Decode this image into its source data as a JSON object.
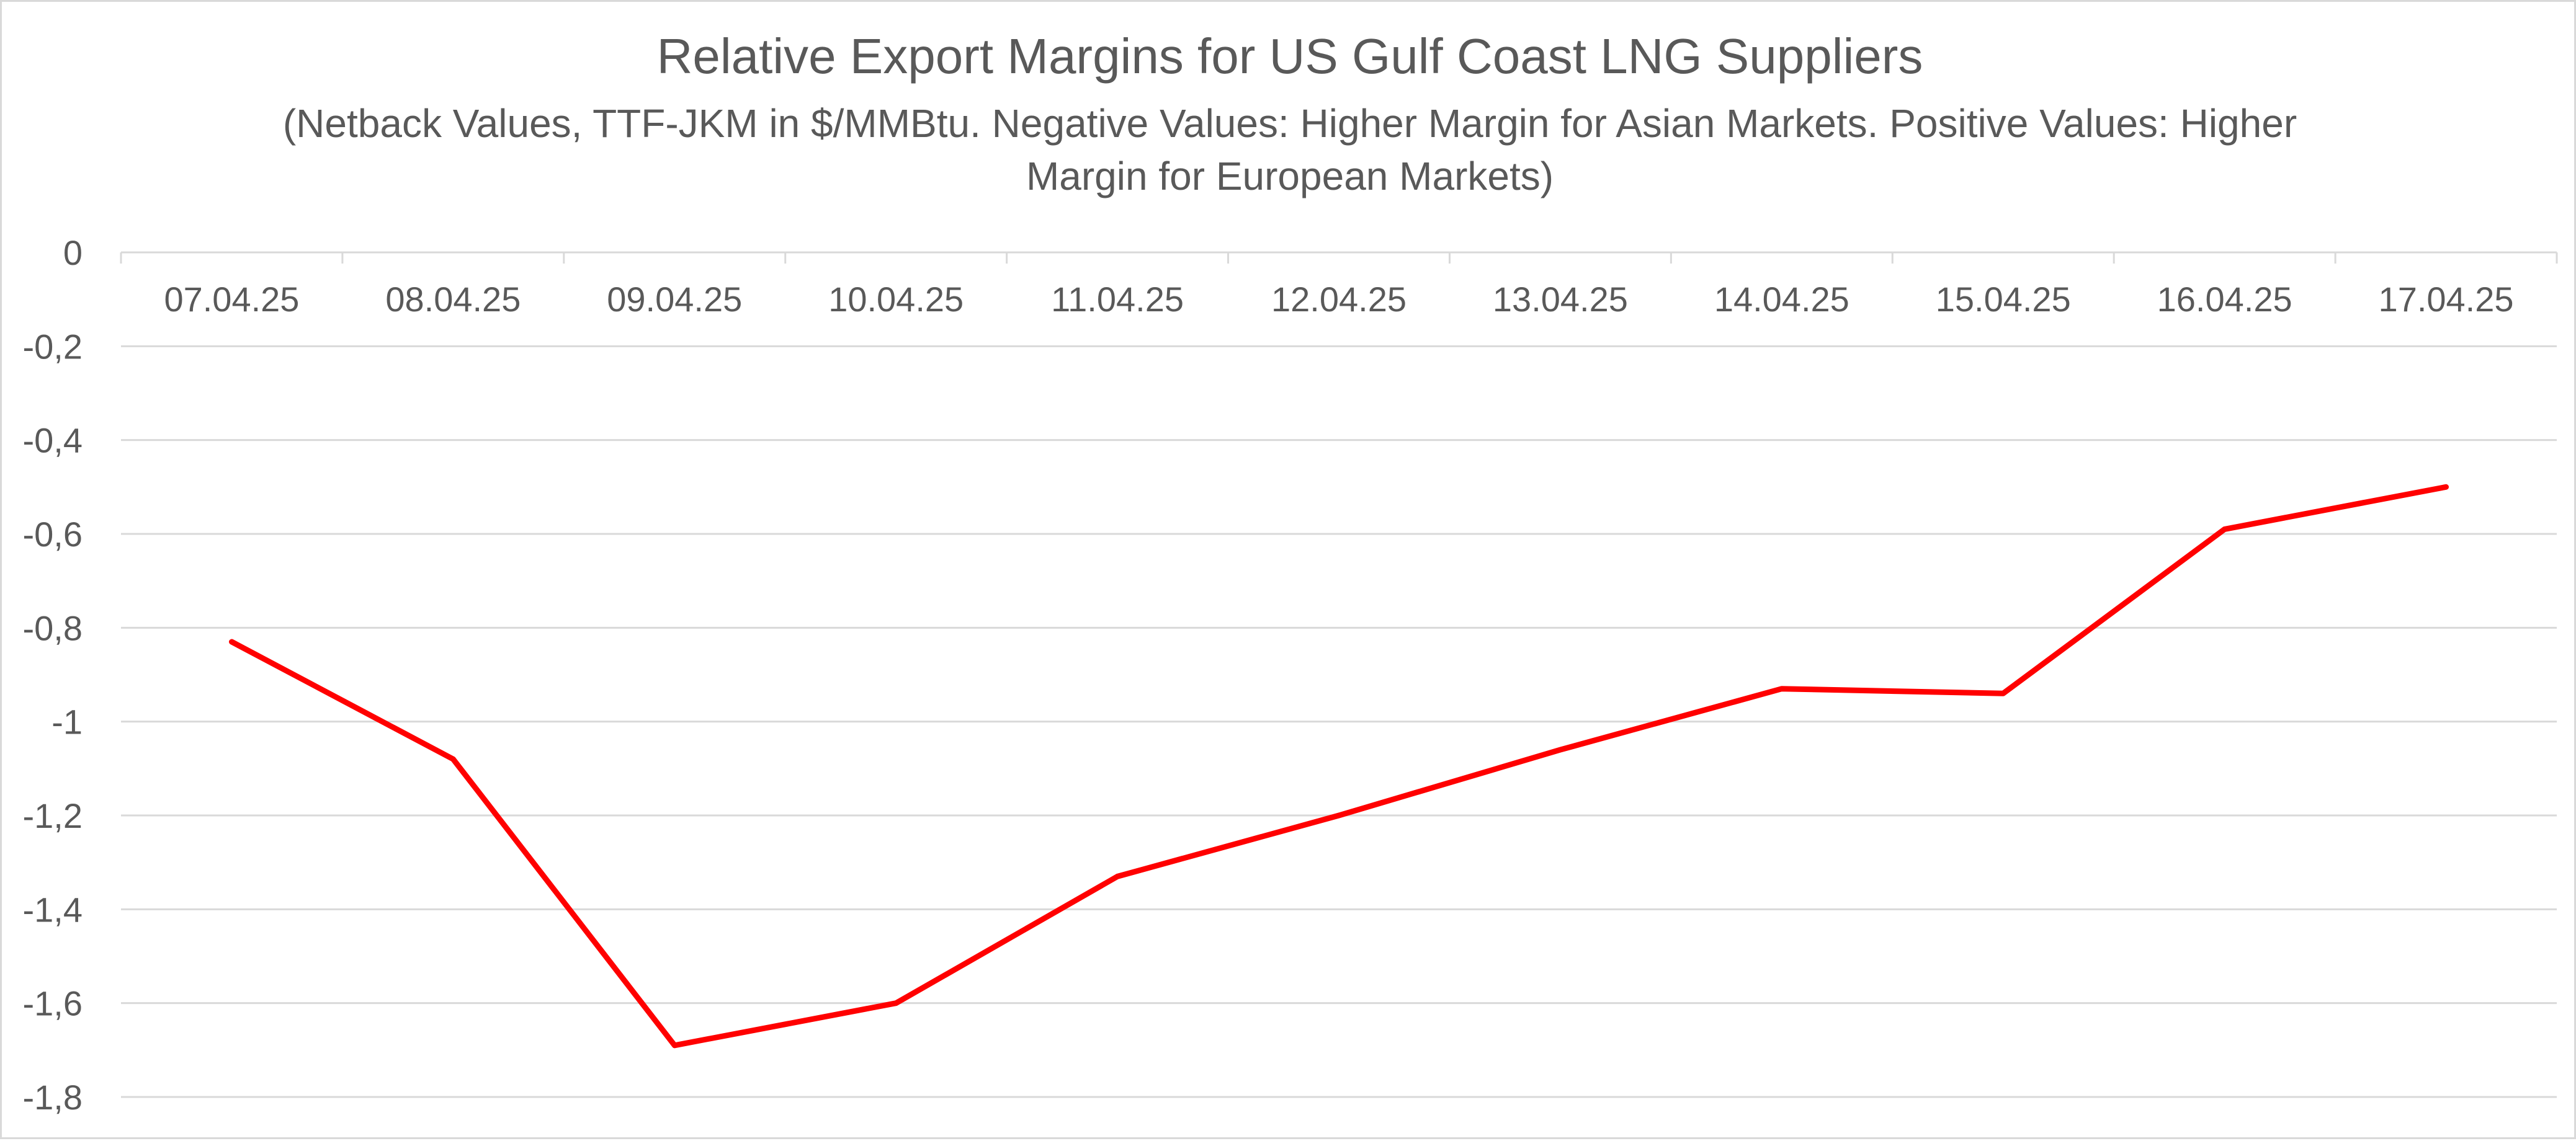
{
  "chart_data": {
    "type": "line",
    "title": "Relative Export Margins for US Gulf Coast LNG Suppliers",
    "subtitle_lines": [
      "(Netback Values, TTF-JKM in $/MMBtu. Negative Values: Higher Margin for Asian Markets. Positive Values: Higher",
      "Margin for European Markets)"
    ],
    "categories": [
      "07.04.25",
      "08.04.25",
      "09.04.25",
      "10.04.25",
      "11.04.25",
      "12.04.25",
      "13.04.25",
      "14.04.25",
      "15.04.25",
      "16.04.25",
      "17.04.25"
    ],
    "series": [
      {
        "color": "#ff0000",
        "values": [
          -0.83,
          -1.08,
          -1.69,
          -1.6,
          -1.33,
          -1.2,
          -1.06,
          -0.93,
          -0.94,
          -0.59,
          -0.5
        ]
      }
    ],
    "ylim": [
      -1.8,
      0
    ],
    "y_ticks": [
      0,
      -0.2,
      -0.4,
      -0.6,
      -0.8,
      -1,
      -1.2,
      -1.4,
      -1.6,
      -1.8
    ],
    "y_tick_labels": [
      "0",
      "-0,2",
      "-0,4",
      "-0,6",
      "-0,8",
      "-1",
      "-1,2",
      "-1,4",
      "-1,6",
      "-1,8"
    ],
    "grid": true,
    "legend": false,
    "xlabel": "",
    "ylabel": ""
  }
}
